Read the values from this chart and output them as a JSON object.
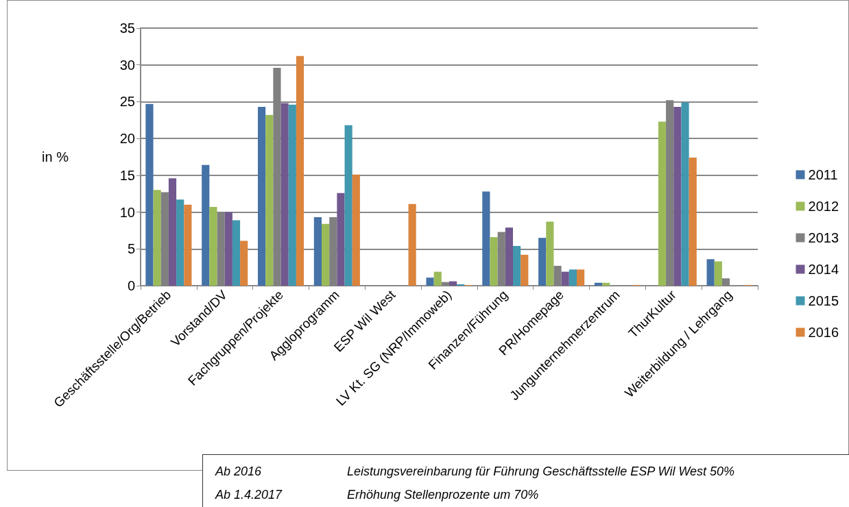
{
  "chart_data": {
    "type": "bar",
    "ylabel": "in %",
    "categories": [
      "Geschäftsstelle/Org/Betrieb",
      "Vorstand/DV",
      "Fachgruppen/Projekte",
      "Aggloprogramm",
      "ESP Wil West",
      "LV Kt. SG (NRP/Immoweb)",
      "Finanzen/Führung",
      "PR/Homepage",
      "Jungunternehmerzentrum",
      "ThurKultur",
      "Weiterbildung / Lehrgang"
    ],
    "series": [
      {
        "name": "2011",
        "color": "#4572a7",
        "values": [
          24.7,
          16.4,
          24.3,
          9.3,
          null,
          1.1,
          12.8,
          6.5,
          0.4,
          null,
          3.6
        ]
      },
      {
        "name": "2012",
        "color": "#9bbb59",
        "values": [
          13.0,
          10.7,
          23.2,
          8.4,
          null,
          1.9,
          6.6,
          8.7,
          0.4,
          22.3,
          3.3
        ]
      },
      {
        "name": "2013",
        "color": "#808080",
        "values": [
          12.7,
          10.0,
          29.6,
          9.3,
          null,
          0.5,
          7.3,
          2.7,
          null,
          25.2,
          1.0
        ]
      },
      {
        "name": "2014",
        "color": "#71588f",
        "values": [
          14.6,
          10.0,
          24.8,
          12.6,
          null,
          0.6,
          7.9,
          1.9,
          null,
          24.3,
          null
        ]
      },
      {
        "name": "2015",
        "color": "#4198af",
        "values": [
          11.7,
          8.9,
          24.6,
          21.8,
          null,
          0.2,
          5.4,
          2.2,
          null,
          24.9,
          null
        ]
      },
      {
        "name": "2016",
        "color": "#db843d",
        "values": [
          11.0,
          6.1,
          31.2,
          15.1,
          11.1,
          0.1,
          4.2,
          2.2,
          0.1,
          17.4,
          0.1
        ]
      }
    ],
    "ylim": [
      0,
      35
    ],
    "yticks": [
      0,
      5,
      10,
      15,
      20,
      25,
      30,
      35
    ],
    "grid": "y",
    "legend": "right",
    "annotations": [
      "Ab 2016",
      "Leistungsvereinbarung für Führung Geschäftsstelle ESP Wil West 50%",
      "Ab 1.4.2017",
      "Erhöhung Stellenprozente um 70%"
    ]
  }
}
